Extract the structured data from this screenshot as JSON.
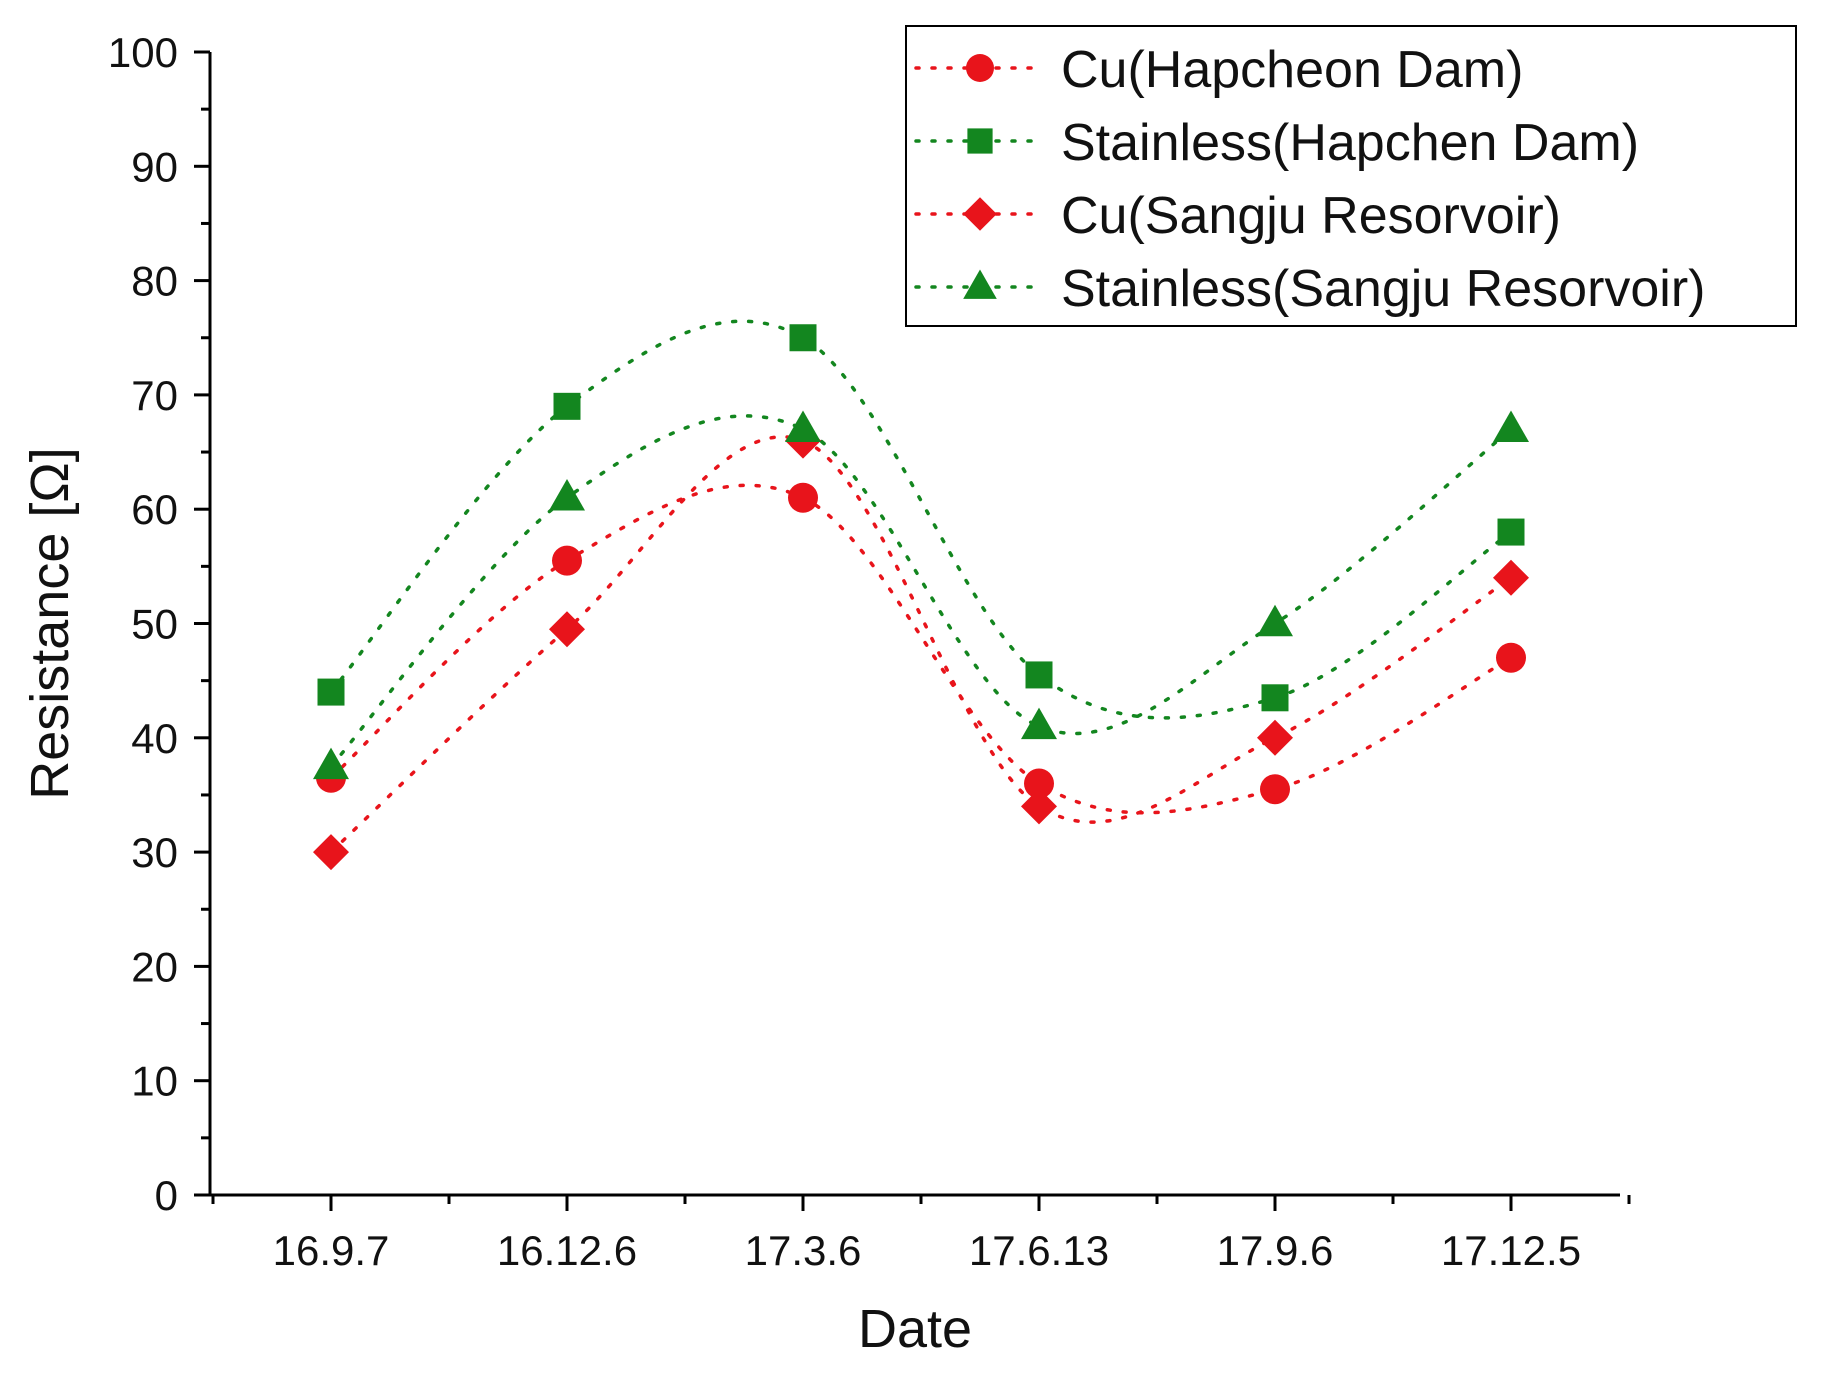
{
  "chart_data": {
    "type": "scatter",
    "xlabel": "Date",
    "ylabel": "Resistance [Ω]",
    "categories": [
      "16.9.7",
      "16.12.6",
      "17.3.6",
      "17.6.13",
      "17.9.6",
      "17.12.5"
    ],
    "ylim": [
      0,
      100
    ],
    "yticks": [
      0,
      10,
      20,
      30,
      40,
      50,
      60,
      70,
      80,
      90,
      100
    ],
    "grid": false,
    "legend_position": "top-right",
    "trend_lines": "dotted smooth spline through each series",
    "series": [
      {
        "name": "Cu(Hapcheon Dam)",
        "marker": "circle",
        "color": "#e8141b",
        "values": [
          36.5,
          55.5,
          61,
          36,
          35.5,
          47
        ]
      },
      {
        "name": "Stainless(Hapchen Dam)",
        "marker": "square",
        "color": "#13861f",
        "values": [
          44,
          69,
          75,
          45.5,
          43.5,
          58
        ]
      },
      {
        "name": "Cu(Sangju Resorvoir)",
        "marker": "diamond",
        "color": "#e8141b",
        "values": [
          30,
          49.5,
          66,
          34,
          40,
          54
        ]
      },
      {
        "name": "Stainless(Sangju Resorvoir)",
        "marker": "triangle",
        "color": "#13861f",
        "values": [
          37.5,
          61,
          67,
          41,
          50,
          67
        ]
      }
    ]
  }
}
